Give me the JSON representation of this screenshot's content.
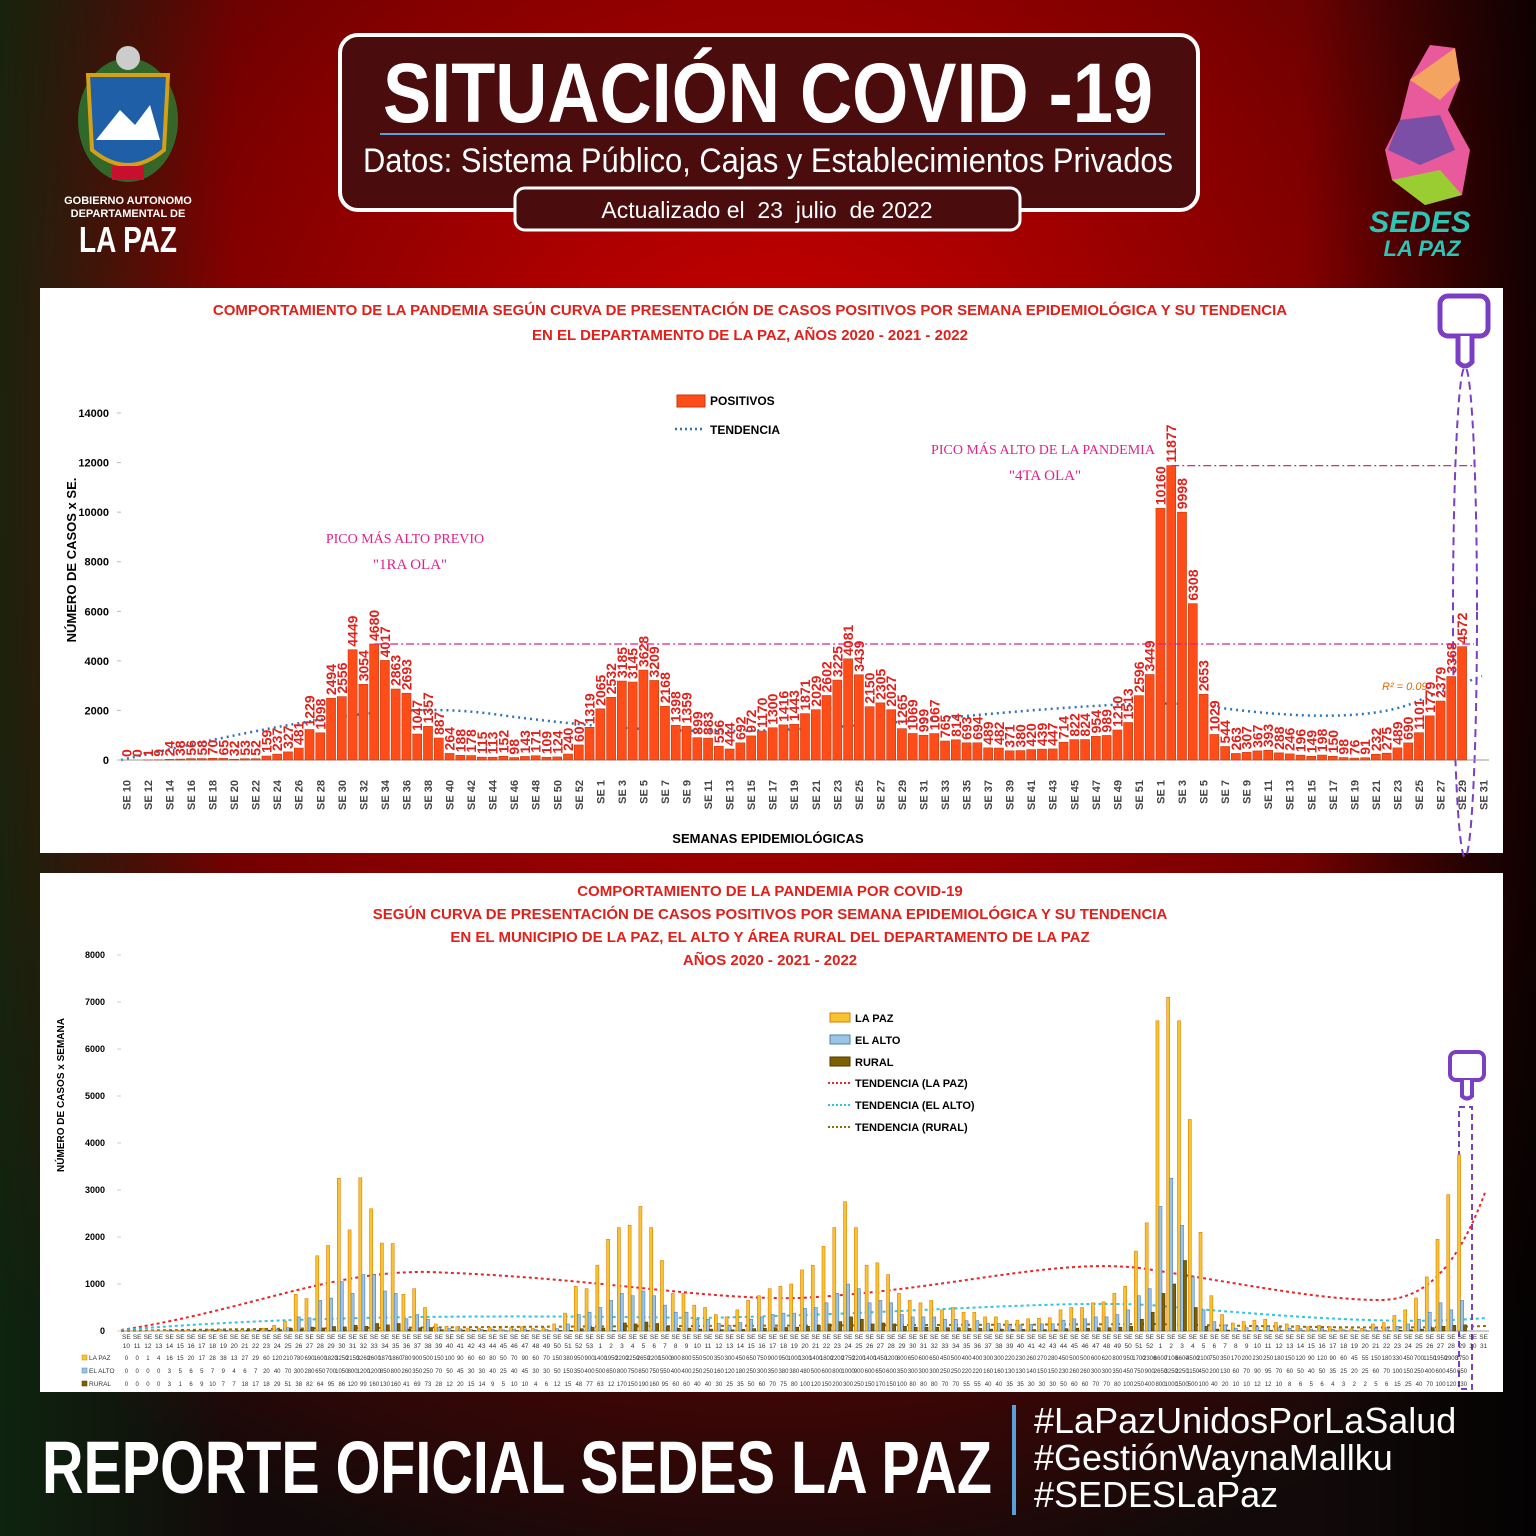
{
  "header": {
    "title": "SITUACIÓN COVID -19",
    "subtitle": "Datos: Sistema Público, Cajas y Establecimientos Privados",
    "updated": "Actualizado el  23  julio  de 2022",
    "logo_left": [
      "GOBIERNO AUTONOMO",
      "DEPARTAMENTAL DE",
      "LA PAZ"
    ],
    "logo_right": [
      "SEDES",
      "LA PAZ"
    ]
  },
  "chart_data": [
    {
      "type": "bar",
      "title": [
        "COMPORTAMIENTO DE LA PANDEMIA SEGÚN CURVA DE PRESENTACIÓN DE CASOS POSITIVOS POR SEMANA EPIDEMIOLÓGICA Y SU TENDENCIA",
        "EN EL DEPARTAMENTO DE LA PAZ, AÑOS 2020 - 2021 - 2022"
      ],
      "y_label": "NÚMERO DE CASOS x SE.",
      "x_label": "SEMANAS EPIDEMIOLÓGICAS",
      "ylim": [
        0,
        14000
      ],
      "yticks": [
        0,
        2000,
        4000,
        6000,
        8000,
        10000,
        12000,
        14000
      ],
      "categories": [
        "SE 10",
        null,
        "SE 12",
        null,
        "SE 14",
        null,
        "SE 16",
        null,
        "SE 18",
        null,
        "SE 20",
        null,
        "SE 22",
        null,
        "SE 24",
        null,
        "SE 26",
        null,
        "SE 28",
        null,
        "SE 30",
        null,
        "SE 32",
        null,
        "SE 34",
        null,
        "SE 36",
        null,
        "SE 38",
        null,
        "SE 40",
        null,
        "SE 42",
        null,
        "SE 44",
        null,
        "SE 46",
        null,
        "SE 48",
        null,
        "SE 50",
        null,
        "SE 52",
        null,
        "SE 1",
        null,
        "SE 3",
        null,
        "SE 5",
        null,
        "SE 7",
        null,
        "SE 9",
        null,
        "SE 11",
        null,
        "SE 13",
        null,
        "SE 15",
        null,
        "SE 17",
        null,
        "SE 19",
        null,
        "SE 21",
        null,
        "SE 23",
        null,
        "SE 25",
        null,
        "SE 27",
        null,
        "SE 29",
        null,
        "SE 31",
        null,
        "SE 33",
        null,
        "SE 35",
        null,
        "SE 37",
        null,
        "SE 39",
        null,
        "SE 41",
        null,
        "SE 43",
        null,
        "SE 45",
        null,
        "SE 47",
        null,
        "SE 49",
        null,
        "SE 51",
        null,
        "SE 1",
        null,
        "SE 3",
        null,
        "SE 5",
        null,
        "SE 7",
        null,
        "SE 9",
        null,
        "SE 11",
        null,
        "SE 13",
        null,
        "SE 15",
        null,
        "SE 17",
        null,
        "SE 19",
        null,
        "SE 21",
        null,
        "SE 23",
        null,
        "SE 25",
        null,
        "SE 27",
        null,
        "SE 29",
        null,
        "SE 31"
      ],
      "series": [
        {
          "name": "POSITIVOS",
          "color": "#ff4d1a",
          "values": [
            0,
            0,
            1,
            9,
            24,
            38,
            56,
            58,
            70,
            65,
            32,
            53,
            52,
            159,
            237,
            327,
            481,
            1229,
            1098,
            2494,
            2556,
            4449,
            3054,
            4680,
            4017,
            2863,
            2693,
            1047,
            1357,
            887,
            264,
            188,
            178,
            115,
            113,
            152,
            98,
            143,
            171,
            109,
            124,
            240,
            607,
            1319,
            2065,
            2532,
            3185,
            3145,
            3628,
            3209,
            2168,
            1398,
            1359,
            899,
            883,
            556,
            444,
            692,
            972,
            1170,
            1300,
            1416,
            1443,
            1871,
            2029,
            2602,
            3225,
            4081,
            3439,
            2150,
            2305,
            2027,
            1265,
            1069,
            999,
            1067,
            765,
            814,
            693,
            694,
            489,
            482,
            371,
            380,
            420,
            439,
            447,
            714,
            822,
            824,
            954,
            989,
            1210,
            1513,
            2596,
            3449,
            10160,
            11877,
            9998,
            6308,
            2653,
            1029,
            544,
            263,
            307,
            367,
            393,
            288,
            246,
            196,
            149,
            198,
            150,
            98,
            76,
            91,
            232,
            275,
            489,
            690,
            1101,
            1779,
            2379,
            3368,
            4572,
            null,
            null
          ]
        }
      ],
      "trend": {
        "name": "TENDENCIA",
        "color": "#2e75b6"
      },
      "annotations": [
        "PICO MÁS ALTO PREVIO",
        "\"1RA OLA\"",
        "PICO MÁS ALTO DE LA PANDEMIA",
        "\"4TA OLA\"",
        "R² = 0.09"
      ]
    },
    {
      "type": "grouped-bar",
      "title": [
        "COMPORTAMIENTO DE LA PANDEMIA POR COVID-19",
        "SEGÚN CURVA DE PRESENTACIÓN DE CASOS POSITIVOS POR SEMANA EPIDEMIOLÓGICA Y SU TENDENCIA",
        "EN EL  MUNICIPIO DE LA PAZ, EL ALTO Y ÁREA RURAL DEL DEPARTAMENTO DE LA PAZ",
        "AÑOS 2020 - 2021 - 2022"
      ],
      "y_label": "NÚMERO DE CASOS x SEMANA",
      "ylim": [
        0,
        8000
      ],
      "yticks": [
        0,
        1000,
        2000,
        3000,
        4000,
        5000,
        6000,
        7000,
        8000
      ],
      "x_prefix": "SE",
      "categories": [
        "10",
        "11",
        "12",
        "13",
        "14",
        "15",
        "16",
        "17",
        "18",
        "19",
        "20",
        "21",
        "22",
        "23",
        "24",
        "25",
        "26",
        "27",
        "28",
        "29",
        "30",
        "31",
        "32",
        "33",
        "34",
        "35",
        "36",
        "37",
        "38",
        "39",
        "40",
        "41",
        "42",
        "43",
        "44",
        "45",
        "46",
        "47",
        "48",
        "49",
        "50",
        "51",
        "52",
        "53",
        "1",
        "2",
        "3",
        "4",
        "5",
        "6",
        "7",
        "8",
        "9",
        "10",
        "11",
        "12",
        "13",
        "14",
        "15",
        "16",
        "17",
        "18",
        "19",
        "20",
        "21",
        "22",
        "23",
        "24",
        "25",
        "26",
        "27",
        "28",
        "29",
        "30",
        "31",
        "32",
        "33",
        "34",
        "35",
        "36",
        "37",
        "38",
        "39",
        "40",
        "41",
        "42",
        "43",
        "44",
        "45",
        "46",
        "47",
        "48",
        "49",
        "50",
        "51",
        "52",
        "1",
        "2",
        "3",
        "4",
        "5",
        "6",
        "7",
        "8",
        "9",
        "10",
        "11",
        "12",
        "13",
        "14",
        "15",
        "16",
        "17",
        "18",
        "19",
        "20",
        "21",
        "22",
        "23",
        "24",
        "25",
        "26",
        "27",
        "28",
        "29",
        "30",
        "31"
      ],
      "series": [
        {
          "name": "LA PAZ",
          "color": "#f7c531",
          "values": [
            0,
            0,
            1,
            4,
            16,
            15,
            20,
            17,
            28,
            38,
            13,
            27,
            29,
            60,
            120,
            210,
            780,
            690,
            1600,
            1820,
            3250,
            2150,
            3260,
            2600,
            1870,
            1860,
            780,
            900,
            500,
            150,
            100,
            90,
            60,
            60,
            80,
            50,
            70,
            90,
            60,
            70,
            150,
            380,
            950,
            900,
            1400,
            1950,
            2200,
            2250,
            2650,
            2200,
            1500,
            800,
            800,
            550,
            500,
            350,
            300,
            450,
            650,
            750,
            900,
            950,
            1000,
            1300,
            1400,
            1800,
            2200,
            2750,
            2200,
            1400,
            1450,
            1200,
            800,
            650,
            600,
            650,
            450,
            500,
            400,
            400,
            300,
            300,
            220,
            230,
            260,
            270,
            280,
            450,
            500,
            500,
            600,
            620,
            800,
            950,
            1700,
            2300,
            6600,
            7100,
            6600,
            4500,
            2100,
            750,
            350,
            170,
            200,
            230,
            250,
            180,
            150,
            120,
            90,
            120,
            90,
            60,
            45,
            55,
            150,
            180,
            330,
            450,
            700,
            1150,
            1950,
            2900,
            3750,
            null,
            null
          ]
        },
        {
          "name": "EL ALTO",
          "color": "#9dc3e6",
          "values": [
            0,
            0,
            0,
            0,
            3,
            5,
            6,
            5,
            7,
            9,
            4,
            6,
            7,
            20,
            40,
            70,
            300,
            280,
            650,
            700,
            1050,
            800,
            1200,
            1200,
            850,
            800,
            260,
            350,
            250,
            70,
            50,
            45,
            30,
            30,
            40,
            25,
            40,
            45,
            30,
            30,
            50,
            150,
            350,
            400,
            500,
            650,
            800,
            750,
            850,
            750,
            550,
            400,
            400,
            250,
            250,
            160,
            120,
            180,
            250,
            300,
            350,
            380,
            380,
            480,
            500,
            600,
            800,
            1000,
            900,
            600,
            650,
            600,
            350,
            300,
            300,
            300,
            250,
            250,
            220,
            220,
            160,
            160,
            130,
            130,
            140,
            150,
            150,
            230,
            260,
            260,
            300,
            300,
            350,
            450,
            750,
            900,
            2650,
            3250,
            2250,
            1150,
            450,
            200,
            130,
            60,
            70,
            90,
            95,
            70,
            60,
            50,
            40,
            50,
            35,
            25,
            20,
            25,
            60,
            70,
            100,
            150,
            250,
            400,
            600,
            450,
            650,
            null,
            null
          ]
        },
        {
          "name": "RURAL",
          "color": "#7f6000",
          "values": [
            0,
            0,
            0,
            0,
            3,
            1,
            6,
            9,
            10,
            7,
            7,
            18,
            17,
            18,
            29,
            51,
            38,
            82,
            64,
            95,
            86,
            120,
            99,
            160,
            130,
            160,
            41,
            69,
            73,
            28,
            12,
            20,
            15,
            14,
            9,
            5,
            10,
            10,
            4,
            6,
            12,
            15,
            48,
            77,
            63,
            12,
            170,
            150,
            190,
            160,
            95,
            60,
            60,
            40,
            40,
            30,
            25,
            35,
            50,
            60,
            70,
            75,
            80,
            100,
            120,
            150,
            200,
            300,
            250,
            150,
            170,
            150,
            100,
            80,
            80,
            80,
            70,
            70,
            55,
            55,
            40,
            40,
            35,
            35,
            30,
            30,
            30,
            50,
            60,
            60,
            70,
            70,
            80,
            100,
            250,
            400,
            800,
            1000,
            1500,
            500,
            100,
            40,
            20,
            10,
            10,
            12,
            12,
            10,
            8,
            6,
            5,
            6,
            4,
            3,
            2,
            2,
            5,
            6,
            15,
            25,
            40,
            70,
            100,
            120,
            130,
            null,
            null
          ]
        }
      ],
      "trends": [
        {
          "name": "TENDENCIA (LA PAZ)",
          "color": "#e8262a"
        },
        {
          "name": "TENDENCIA (EL ALTO)",
          "color": "#2ec4e6"
        },
        {
          "name": "TENDENCIA (RURAL)",
          "color": "#8a6d00"
        }
      ]
    }
  ],
  "footer": {
    "title": "REPORTE OFICIAL SEDES LA PAZ",
    "hashtags": [
      "#LaPazUnidosPorLaSalud",
      "#GestiónWaynaMallku",
      "#SEDESLaPaz"
    ]
  }
}
